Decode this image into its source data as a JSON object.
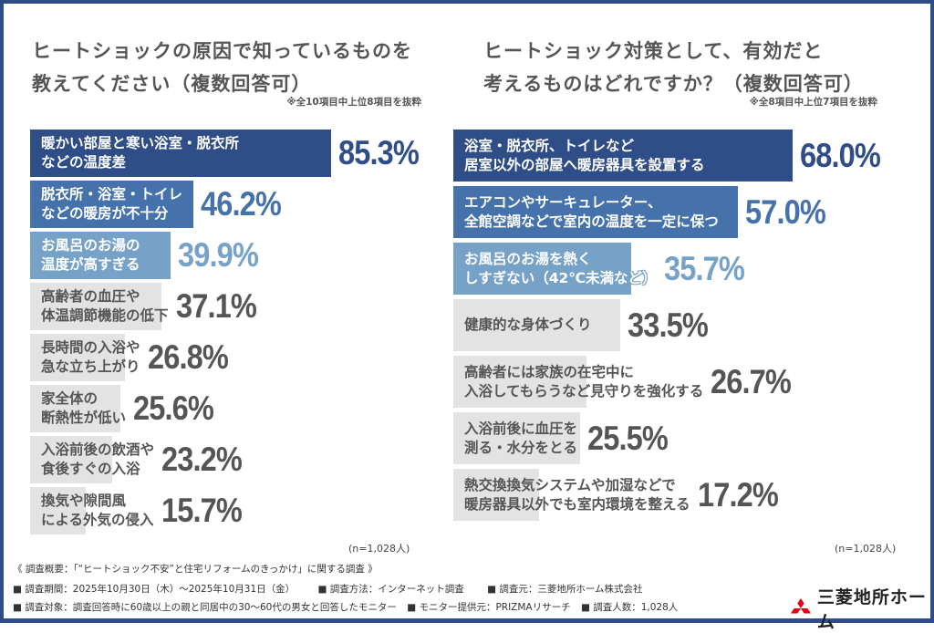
{
  "chart_data": [
    {
      "type": "bar",
      "orientation": "horizontal",
      "title_lines": [
        "ヒートショックの原因で知っているものを",
        "教えてください（複数回答可）"
      ],
      "note": "※全10項目中上位8項目を抜粋",
      "sample": "(n=1,028人)",
      "unit": "%",
      "categories": [
        [
          "暖かい部屋と寒い浴室・脱衣所",
          "などの温度差"
        ],
        [
          "脱衣所・浴室・トイレ",
          "などの暖房が不十分"
        ],
        [
          "お風呂のお湯の",
          "温度が高すぎる"
        ],
        [
          "高齢者の血圧や",
          "体温調節機能の低下"
        ],
        [
          "長時間の入浴や",
          "急な立ち上がり"
        ],
        [
          "家全体の",
          "断熱性が低い"
        ],
        [
          "入浴前後の飲酒や",
          "食後すぐの入浴"
        ],
        [
          "換気や隙間風",
          "による外気の侵入"
        ]
      ],
      "values": [
        85.3,
        46.2,
        39.9,
        37.1,
        26.8,
        25.6,
        23.2,
        15.7
      ],
      "labels": [
        "85.3%",
        "46.2%",
        "39.9%",
        "37.1%",
        "26.8%",
        "25.6%",
        "23.2%",
        "15.7%"
      ]
    },
    {
      "type": "bar",
      "orientation": "horizontal",
      "title_lines": [
        "ヒートショック対策として、有効だと",
        "考えるものはどれですか？（複数回答可）"
      ],
      "note": "※全8項目中上位7項目を抜粋",
      "sample": "(n=1,028人)",
      "unit": "%",
      "categories": [
        [
          "浴室・脱衣所、トイレなど",
          "居室以外の部屋へ暖房器具を設置する"
        ],
        [
          "エアコンやサーキュレーター、",
          "全館空調などで室内の温度を一定に保つ"
        ],
        [
          "お風呂のお湯を熱く",
          "しすぎない（42℃未満など）"
        ],
        [
          "健康的な身体づくり"
        ],
        [
          "高齢者には家族の在宅中に",
          "入浴してもらうなど見守りを強化する"
        ],
        [
          "入浴前後に血圧を",
          "測る・水分をとる"
        ],
        [
          "熱交換換気システムや加湿などで",
          "暖房器具以外でも室内環境を整える"
        ]
      ],
      "values": [
        68.0,
        57.0,
        35.7,
        33.5,
        26.7,
        25.5,
        17.2
      ],
      "labels": [
        "68.0%",
        "57.0%",
        "35.7%",
        "33.5%",
        "26.7%",
        "25.5%",
        "17.2%"
      ]
    }
  ],
  "colors": {
    "rank1": "#2f4d87",
    "rank2": "#4572ab",
    "rank3": "#77a2c8",
    "other": "#e3e3e3",
    "other_text": "#555555",
    "frame": "#2f4d87",
    "logo_red": "#e60012"
  },
  "footer": {
    "heading": "《 調査概要：「“ヒートショック不安”と住宅リフォームのきっかけ」に関する調査 》",
    "line1": [
      "■ 調査期間：2025年10月30日（木）～2025年10月31日（金）",
      "■ 調査方法：インターネット調査",
      "■ 調査元：三菱地所ホーム株式会社"
    ],
    "line2": [
      "■ 調査対象：調査回答時に60歳以上の親と同居中の30～60代の男女と回答したモニター",
      "■ モニター提供元：PRIZMAリサーチ",
      "■ 調査人数：1,028人"
    ]
  },
  "logo": {
    "text": "三菱地所ホーム",
    "icon": "three-diamonds-icon"
  }
}
